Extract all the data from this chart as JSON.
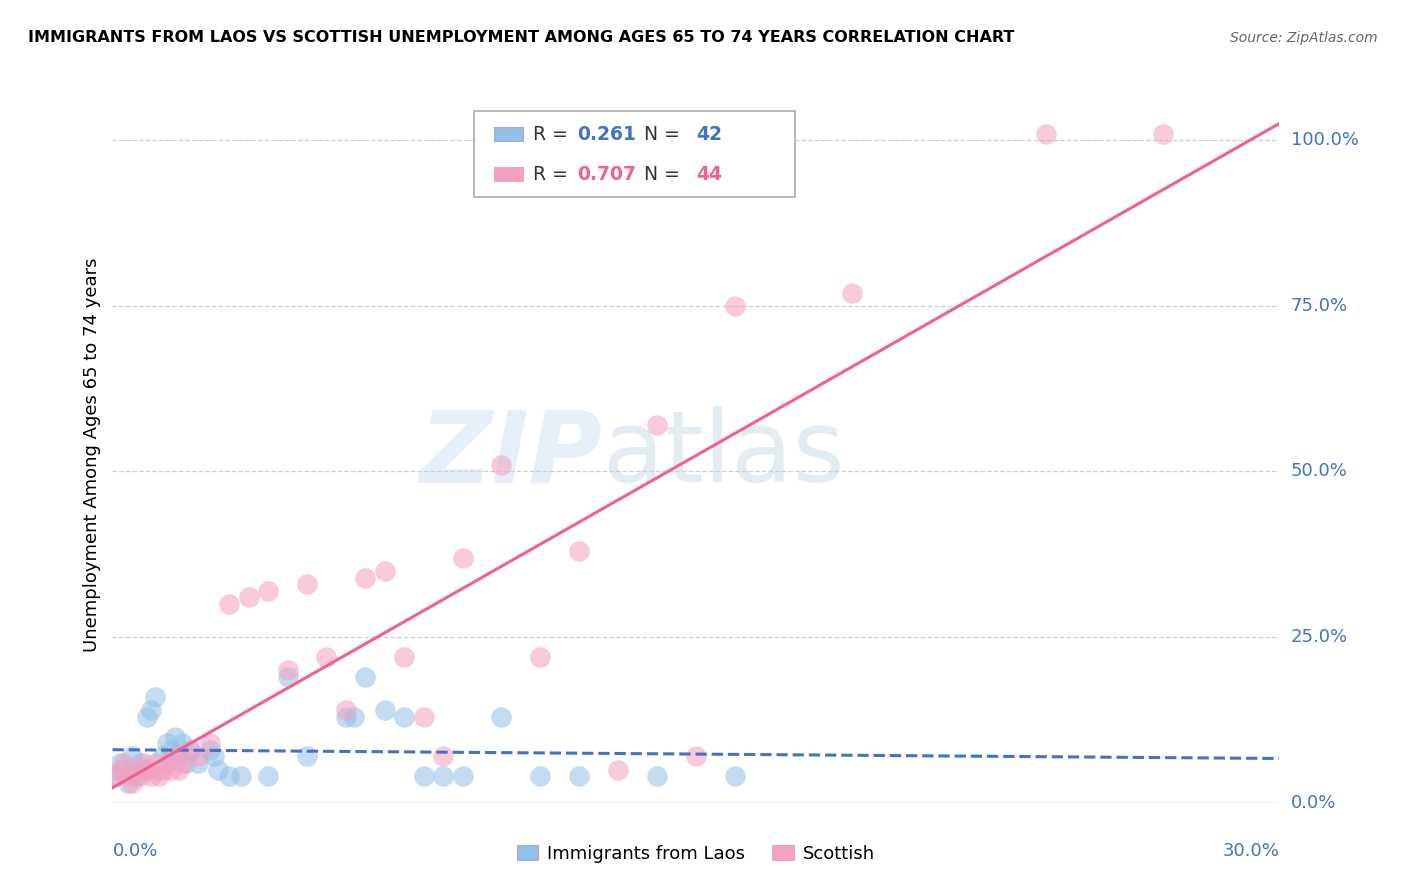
{
  "title": "IMMIGRANTS FROM LAOS VS SCOTTISH UNEMPLOYMENT AMONG AGES 65 TO 74 YEARS CORRELATION CHART",
  "source": "Source: ZipAtlas.com",
  "ylabel": "Unemployment Among Ages 65 to 74 years",
  "ytick_labels": [
    "0.0%",
    "25.0%",
    "50.0%",
    "75.0%",
    "100.0%"
  ],
  "ytick_positions": [
    0.0,
    0.25,
    0.5,
    0.75,
    1.0
  ],
  "xlim": [
    0.0,
    0.3
  ],
  "ylim": [
    0.0,
    1.05
  ],
  "blue_color": "#92C0E8",
  "pink_color": "#F4A0C0",
  "blue_line_color": "#4472C4",
  "pink_line_color": "#F06090",
  "tick_color": "#4472C4",
  "grid_color": "#d0d0d0",
  "legend_R_blue": "0.261",
  "legend_N_blue": "42",
  "legend_R_pink": "0.707",
  "legend_N_pink": "44",
  "watermark_zip": "ZIP",
  "watermark_atlas": "atlas",
  "blue_scatter": [
    [
      0.001,
      0.04
    ],
    [
      0.002,
      0.06
    ],
    [
      0.003,
      0.05
    ],
    [
      0.004,
      0.03
    ],
    [
      0.005,
      0.07
    ],
    [
      0.006,
      0.04
    ],
    [
      0.007,
      0.06
    ],
    [
      0.008,
      0.05
    ],
    [
      0.009,
      0.13
    ],
    [
      0.01,
      0.14
    ],
    [
      0.011,
      0.16
    ],
    [
      0.012,
      0.05
    ],
    [
      0.013,
      0.07
    ],
    [
      0.014,
      0.09
    ],
    [
      0.015,
      0.08
    ],
    [
      0.016,
      0.1
    ],
    [
      0.017,
      0.07
    ],
    [
      0.018,
      0.09
    ],
    [
      0.019,
      0.06
    ],
    [
      0.02,
      0.08
    ],
    [
      0.022,
      0.06
    ],
    [
      0.025,
      0.08
    ],
    [
      0.026,
      0.07
    ],
    [
      0.027,
      0.05
    ],
    [
      0.03,
      0.04
    ],
    [
      0.033,
      0.04
    ],
    [
      0.04,
      0.04
    ],
    [
      0.045,
      0.19
    ],
    [
      0.05,
      0.07
    ],
    [
      0.06,
      0.13
    ],
    [
      0.062,
      0.13
    ],
    [
      0.065,
      0.19
    ],
    [
      0.07,
      0.14
    ],
    [
      0.075,
      0.13
    ],
    [
      0.08,
      0.04
    ],
    [
      0.085,
      0.04
    ],
    [
      0.09,
      0.04
    ],
    [
      0.1,
      0.13
    ],
    [
      0.11,
      0.04
    ],
    [
      0.12,
      0.04
    ],
    [
      0.14,
      0.04
    ],
    [
      0.16,
      0.04
    ]
  ],
  "pink_scatter": [
    [
      0.001,
      0.04
    ],
    [
      0.002,
      0.05
    ],
    [
      0.003,
      0.06
    ],
    [
      0.004,
      0.04
    ],
    [
      0.005,
      0.03
    ],
    [
      0.006,
      0.05
    ],
    [
      0.007,
      0.04
    ],
    [
      0.008,
      0.06
    ],
    [
      0.009,
      0.05
    ],
    [
      0.01,
      0.04
    ],
    [
      0.011,
      0.06
    ],
    [
      0.012,
      0.04
    ],
    [
      0.013,
      0.05
    ],
    [
      0.014,
      0.06
    ],
    [
      0.015,
      0.05
    ],
    [
      0.016,
      0.07
    ],
    [
      0.017,
      0.05
    ],
    [
      0.018,
      0.06
    ],
    [
      0.02,
      0.08
    ],
    [
      0.022,
      0.07
    ],
    [
      0.025,
      0.09
    ],
    [
      0.03,
      0.3
    ],
    [
      0.035,
      0.31
    ],
    [
      0.04,
      0.32
    ],
    [
      0.045,
      0.2
    ],
    [
      0.05,
      0.33
    ],
    [
      0.055,
      0.22
    ],
    [
      0.06,
      0.14
    ],
    [
      0.065,
      0.34
    ],
    [
      0.07,
      0.35
    ],
    [
      0.075,
      0.22
    ],
    [
      0.08,
      0.13
    ],
    [
      0.085,
      0.07
    ],
    [
      0.09,
      0.37
    ],
    [
      0.1,
      0.51
    ],
    [
      0.11,
      0.22
    ],
    [
      0.12,
      0.38
    ],
    [
      0.13,
      0.05
    ],
    [
      0.14,
      0.57
    ],
    [
      0.15,
      0.07
    ],
    [
      0.16,
      0.75
    ],
    [
      0.19,
      0.77
    ],
    [
      0.24,
      1.01
    ],
    [
      0.27,
      1.01
    ]
  ]
}
